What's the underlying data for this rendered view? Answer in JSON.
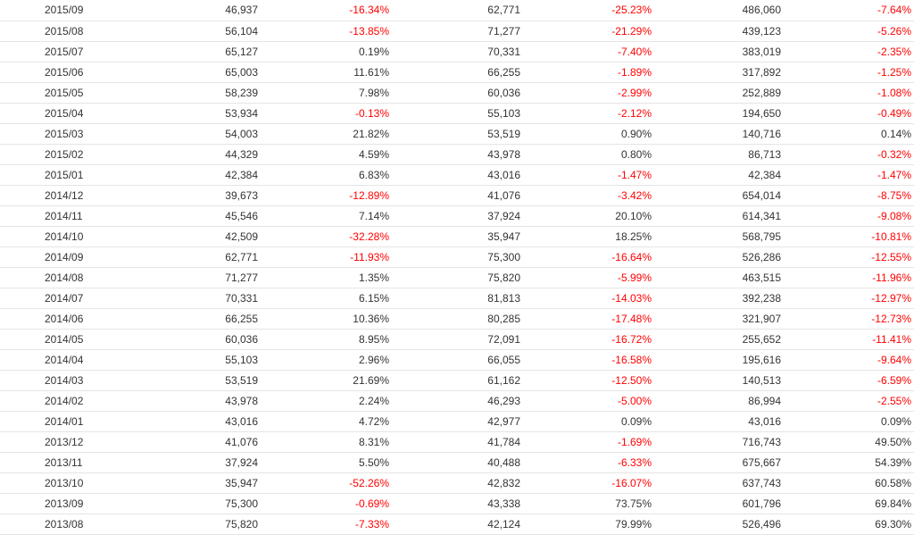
{
  "colors": {
    "negative": "#ff0000",
    "positive": "#333333",
    "row_border": "#e5e5e5"
  },
  "rows": [
    {
      "month": "2015/09",
      "v1": "46,937",
      "p1": "-16.34%",
      "v2": "62,771",
      "p2": "-25.23%",
      "v3": "486,060",
      "p3": "-7.64%"
    },
    {
      "month": "2015/08",
      "v1": "56,104",
      "p1": "-13.85%",
      "v2": "71,277",
      "p2": "-21.29%",
      "v3": "439,123",
      "p3": "-5.26%"
    },
    {
      "month": "2015/07",
      "v1": "65,127",
      "p1": "0.19%",
      "v2": "70,331",
      "p2": "-7.40%",
      "v3": "383,019",
      "p3": "-2.35%"
    },
    {
      "month": "2015/06",
      "v1": "65,003",
      "p1": "11.61%",
      "v2": "66,255",
      "p2": "-1.89%",
      "v3": "317,892",
      "p3": "-1.25%"
    },
    {
      "month": "2015/05",
      "v1": "58,239",
      "p1": "7.98%",
      "v2": "60,036",
      "p2": "-2.99%",
      "v3": "252,889",
      "p3": "-1.08%"
    },
    {
      "month": "2015/04",
      "v1": "53,934",
      "p1": "-0.13%",
      "v2": "55,103",
      "p2": "-2.12%",
      "v3": "194,650",
      "p3": "-0.49%"
    },
    {
      "month": "2015/03",
      "v1": "54,003",
      "p1": "21.82%",
      "v2": "53,519",
      "p2": "0.90%",
      "v3": "140,716",
      "p3": "0.14%"
    },
    {
      "month": "2015/02",
      "v1": "44,329",
      "p1": "4.59%",
      "v2": "43,978",
      "p2": "0.80%",
      "v3": "86,713",
      "p3": "-0.32%"
    },
    {
      "month": "2015/01",
      "v1": "42,384",
      "p1": "6.83%",
      "v2": "43,016",
      "p2": "-1.47%",
      "v3": "42,384",
      "p3": "-1.47%"
    },
    {
      "month": "2014/12",
      "v1": "39,673",
      "p1": "-12.89%",
      "v2": "41,076",
      "p2": "-3.42%",
      "v3": "654,014",
      "p3": "-8.75%"
    },
    {
      "month": "2014/11",
      "v1": "45,546",
      "p1": "7.14%",
      "v2": "37,924",
      "p2": "20.10%",
      "v3": "614,341",
      "p3": "-9.08%"
    },
    {
      "month": "2014/10",
      "v1": "42,509",
      "p1": "-32.28%",
      "v2": "35,947",
      "p2": "18.25%",
      "v3": "568,795",
      "p3": "-10.81%"
    },
    {
      "month": "2014/09",
      "v1": "62,771",
      "p1": "-11.93%",
      "v2": "75,300",
      "p2": "-16.64%",
      "v3": "526,286",
      "p3": "-12.55%"
    },
    {
      "month": "2014/08",
      "v1": "71,277",
      "p1": "1.35%",
      "v2": "75,820",
      "p2": "-5.99%",
      "v3": "463,515",
      "p3": "-11.96%"
    },
    {
      "month": "2014/07",
      "v1": "70,331",
      "p1": "6.15%",
      "v2": "81,813",
      "p2": "-14.03%",
      "v3": "392,238",
      "p3": "-12.97%"
    },
    {
      "month": "2014/06",
      "v1": "66,255",
      "p1": "10.36%",
      "v2": "80,285",
      "p2": "-17.48%",
      "v3": "321,907",
      "p3": "-12.73%"
    },
    {
      "month": "2014/05",
      "v1": "60,036",
      "p1": "8.95%",
      "v2": "72,091",
      "p2": "-16.72%",
      "v3": "255,652",
      "p3": "-11.41%"
    },
    {
      "month": "2014/04",
      "v1": "55,103",
      "p1": "2.96%",
      "v2": "66,055",
      "p2": "-16.58%",
      "v3": "195,616",
      "p3": "-9.64%"
    },
    {
      "month": "2014/03",
      "v1": "53,519",
      "p1": "21.69%",
      "v2": "61,162",
      "p2": "-12.50%",
      "v3": "140,513",
      "p3": "-6.59%"
    },
    {
      "month": "2014/02",
      "v1": "43,978",
      "p1": "2.24%",
      "v2": "46,293",
      "p2": "-5.00%",
      "v3": "86,994",
      "p3": "-2.55%"
    },
    {
      "month": "2014/01",
      "v1": "43,016",
      "p1": "4.72%",
      "v2": "42,977",
      "p2": "0.09%",
      "v3": "43,016",
      "p3": "0.09%"
    },
    {
      "month": "2013/12",
      "v1": "41,076",
      "p1": "8.31%",
      "v2": "41,784",
      "p2": "-1.69%",
      "v3": "716,743",
      "p3": "49.50%"
    },
    {
      "month": "2013/11",
      "v1": "37,924",
      "p1": "5.50%",
      "v2": "40,488",
      "p2": "-6.33%",
      "v3": "675,667",
      "p3": "54.39%"
    },
    {
      "month": "2013/10",
      "v1": "35,947",
      "p1": "-52.26%",
      "v2": "42,832",
      "p2": "-16.07%",
      "v3": "637,743",
      "p3": "60.58%"
    },
    {
      "month": "2013/09",
      "v1": "75,300",
      "p1": "-0.69%",
      "v2": "43,338",
      "p2": "73.75%",
      "v3": "601,796",
      "p3": "69.84%"
    },
    {
      "month": "2013/08",
      "v1": "75,820",
      "p1": "-7.33%",
      "v2": "42,124",
      "p2": "79.99%",
      "v3": "526,496",
      "p3": "69.30%"
    }
  ]
}
